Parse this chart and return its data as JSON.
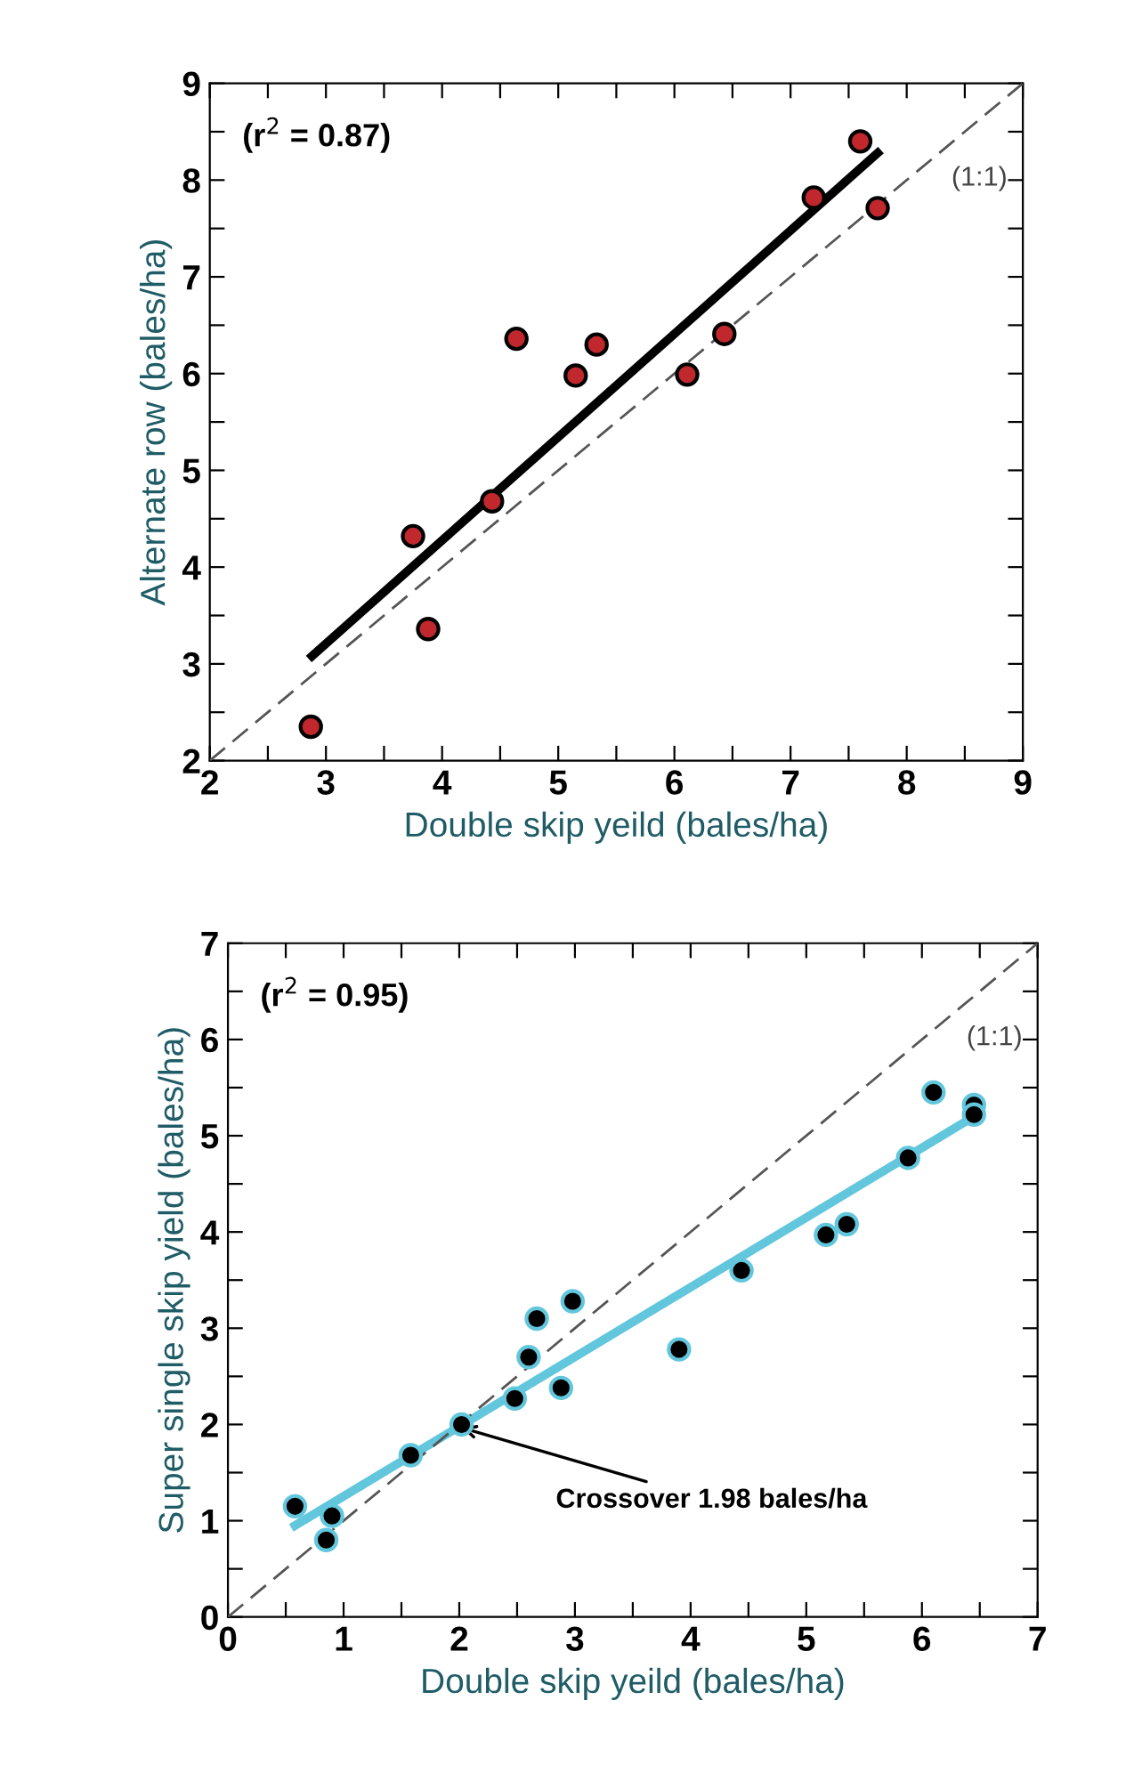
{
  "chart_data": [
    {
      "type": "scatter",
      "xlabel": "Double skip yeild (bales/ha)",
      "ylabel": "Alternate row (bales/ha)",
      "xlim": [
        2,
        9
      ],
      "ylim": [
        2,
        9
      ],
      "xticks": [
        2,
        {
          "value": 2.5,
          "label": null
        },
        3,
        {
          "value": 3.5,
          "label": null
        },
        4,
        {
          "value": 4.5,
          "label": null
        },
        5,
        {
          "value": 5.5,
          "label": null
        },
        6,
        {
          "value": 6.5,
          "label": null
        },
        7,
        {
          "value": 7.5,
          "label": null
        },
        8,
        {
          "value": 8.5,
          "label": null
        },
        9
      ],
      "yticks": [
        2,
        {
          "value": 2.5,
          "label": null
        },
        3,
        {
          "value": 3.5,
          "label": null
        },
        4,
        {
          "value": 4.5,
          "label": null
        },
        5,
        {
          "value": 5.5,
          "label": null
        },
        6,
        {
          "value": 6.5,
          "label": null
        },
        7,
        {
          "value": 7.5,
          "label": null
        },
        8,
        {
          "value": 8.5,
          "label": null
        },
        9
      ],
      "grid": false,
      "legend": false,
      "annotations": [
        "(r$^{2}$ = 0.87)"
      ],
      "series": [
        {
          "marker": "circle",
          "color": "#c0282d",
          "x": [
            2.87,
            3.75,
            3.88,
            4.43,
            4.64,
            5.15,
            5.33,
            6.11,
            6.43,
            7.2,
            7.6,
            7.75
          ],
          "values": [
            2.35,
            4.32,
            3.36,
            4.68,
            6.36,
            5.98,
            6.3,
            5.99,
            6.41,
            7.82,
            8.4,
            7.71
          ]
        },
        {
          "type": "line",
          "line_style": "solid",
          "color": "#000000",
          "x": [
            2.88,
            7.75
          ],
          "values": [
            3.08,
            8.28
          ]
        },
        {
          "type": "line",
          "line_style": "dashed",
          "name": "(1:1)",
          "color": "#555555",
          "x": [
            2,
            9
          ],
          "values": [
            2,
            9
          ]
        }
      ]
    },
    {
      "type": "scatter",
      "xlabel": "Double skip yeild (bales/ha)",
      "ylabel": "Super single skip yield (bales/ha)",
      "xlim": [
        0,
        7
      ],
      "ylim": [
        0,
        7
      ],
      "xticks": [
        0,
        {
          "value": 0.5,
          "label": null
        },
        1,
        {
          "value": 1.5,
          "label": null
        },
        2,
        {
          "value": 2.5,
          "label": null
        },
        3,
        {
          "value": 3.5,
          "label": null
        },
        4,
        {
          "value": 4.5,
          "label": null
        },
        5,
        {
          "value": 5.5,
          "label": null
        },
        6,
        {
          "value": 6.5,
          "label": null
        },
        7
      ],
      "yticks": [
        0,
        {
          "value": 0.5,
          "label": null
        },
        1,
        {
          "value": 1.5,
          "label": null
        },
        2,
        {
          "value": 2.5,
          "label": null
        },
        3,
        {
          "value": 3.5,
          "label": null
        },
        4,
        {
          "value": 4.5,
          "label": null
        },
        5,
        {
          "value": 5.5,
          "label": null
        },
        6,
        {
          "value": 6.5,
          "label": null
        },
        7
      ],
      "grid": false,
      "legend": false,
      "annotations": [
        "(r$^{2}$ = 0.95)",
        {
          "text": "Crossover 1.98 bales/ha",
          "x": 1.98,
          "y": 1.98
        }
      ],
      "series": [
        {
          "marker": "circle",
          "color": "#000000",
          "x": [
            0.58,
            0.85,
            0.9,
            1.58,
            2.02,
            2.48,
            2.6,
            2.67,
            2.88,
            2.98,
            3.9,
            4.44,
            5.17,
            5.35,
            5.88,
            6.1,
            6.45,
            6.45
          ],
          "values": [
            1.15,
            0.8,
            1.05,
            1.68,
            2.0,
            2.27,
            2.7,
            3.1,
            2.38,
            3.28,
            2.78,
            3.6,
            3.97,
            4.08,
            4.77,
            5.45,
            5.32,
            5.22
          ]
        },
        {
          "type": "line",
          "line_style": "solid",
          "color": "#62c6dc",
          "x": [
            0.58,
            6.45
          ],
          "values": [
            0.95,
            5.2
          ]
        },
        {
          "type": "line",
          "line_style": "dashed",
          "name": "(1:1)",
          "color": "#555555",
          "x": [
            0,
            7
          ],
          "values": [
            0,
            7
          ]
        }
      ]
    }
  ]
}
